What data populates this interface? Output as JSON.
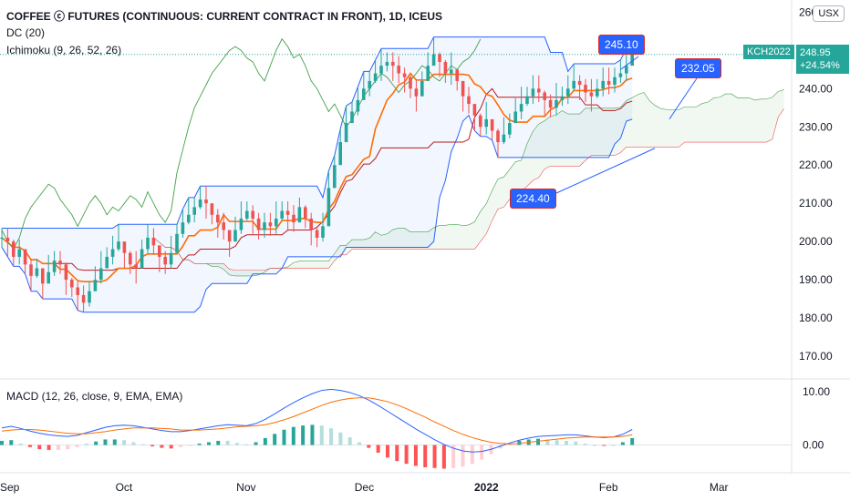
{
  "legend": {
    "title": "COFFEE ⓒ FUTURES (CONTINUOUS: CURRENT CONTRACT IN FRONT), 1D, ICEUS",
    "dc": "DC (20)",
    "ichimoku": "Ichimoku (9, 26, 52, 26)",
    "macd": "MACD (12, 26, close, 9, EMA, EMA)"
  },
  "unit_button": "USX",
  "last_price": {
    "symbol": "KCH2022",
    "price": "248.95",
    "change": "+24.54%"
  },
  "callouts": [
    {
      "label": "245.10",
      "value": 245.1
    },
    {
      "label": "232.05",
      "value": 232.05
    },
    {
      "label": "224.40",
      "value": 224.4
    }
  ],
  "colors": {
    "up": "#26a69a",
    "down": "#ef5350",
    "donchian": "#2962ff",
    "conversion": "#ff6d00",
    "lagging": "#43a047",
    "spanA": "#43a047",
    "spanB": "#ef5350",
    "macd": "#2962ff",
    "signal": "#ff6d00"
  },
  "chart_data": [
    {
      "type": "candlestick",
      "title": "COFFEE ⓒ FUTURES (CONTINUOUS: CURRENT CONTRACT IN FRONT), 1D, ICEUS",
      "ylim": [
        165,
        262
      ],
      "y_ticks": [
        "170.00",
        "180.00",
        "190.00",
        "200.00",
        "210.00",
        "220.00",
        "230.00",
        "240.00",
        "250.00",
        "260.00"
      ],
      "x_ticks": [
        {
          "label": "Sep",
          "bold": false,
          "day": 2
        },
        {
          "label": "Oct",
          "bold": false,
          "day": 31
        },
        {
          "label": "Nov",
          "bold": false,
          "day": 62
        },
        {
          "label": "Dec",
          "bold": false,
          "day": 92
        },
        {
          "label": "2022",
          "bold": true,
          "day": 123
        },
        {
          "label": "Feb",
          "bold": false,
          "day": 154
        },
        {
          "label": "Mar",
          "bold": false,
          "day": 182
        }
      ],
      "close": [
        201,
        200,
        196,
        198,
        194,
        191,
        193,
        189,
        192,
        195,
        194,
        190,
        188,
        186,
        184,
        187,
        190,
        193,
        196,
        198,
        200,
        197,
        194,
        193,
        198,
        201,
        199,
        196,
        194,
        197,
        202,
        205,
        207,
        209,
        211,
        210,
        207,
        205,
        203,
        200,
        203,
        206,
        208,
        206,
        203,
        205,
        204,
        206,
        208,
        207,
        205,
        209,
        206,
        203,
        201,
        204,
        214,
        220,
        226,
        231,
        234,
        237,
        240,
        242,
        244,
        246,
        247,
        246,
        244,
        243,
        240,
        238,
        242,
        246,
        249,
        247,
        244,
        245,
        242,
        238,
        236,
        233,
        230,
        232,
        229,
        226,
        228,
        231,
        234,
        236,
        238,
        240,
        239,
        237,
        235,
        237,
        238,
        240,
        242,
        241,
        239,
        238,
        240,
        242,
        241,
        243,
        244,
        246,
        248.95
      ],
      "sample_dates": "x index in trading days from late Aug 2021 to Feb 2022"
    },
    {
      "type": "line",
      "title": "MACD (12, 26, close, 9, EMA, EMA)",
      "ylim": [
        -4.5,
        12
      ],
      "y_ticks": [
        "0.00",
        "10.00"
      ],
      "series": [
        {
          "name": "MACD",
          "values": [
            3.2,
            3.5,
            3.1,
            2.6,
            2.2,
            1.9,
            1.7,
            1.6,
            1.8,
            2.3,
            2.8,
            3.3,
            3.6,
            3.7,
            3.6,
            3.3,
            3.0,
            2.7,
            2.5,
            2.5,
            2.7,
            3.0,
            3.3,
            3.6,
            3.8,
            3.7,
            3.6,
            4.0,
            4.8,
            5.8,
            6.9,
            7.9,
            8.8,
            9.6,
            10.2,
            10.4,
            10.2,
            9.8,
            9.2,
            8.4,
            7.4,
            6.3,
            5.2,
            4.1,
            3.0,
            2.0,
            1.0,
            0.1,
            -0.6,
            -1.1,
            -1.3,
            -1.2,
            -0.8,
            -0.2,
            0.4,
            0.9,
            1.3,
            1.6,
            1.7,
            1.8,
            1.9,
            1.9,
            1.7,
            1.5,
            1.4,
            1.5,
            2.0,
            2.9
          ]
        },
        {
          "name": "Signal",
          "values": [
            2.6,
            2.8,
            2.9,
            2.9,
            2.8,
            2.6,
            2.4,
            2.2,
            2.1,
            2.1,
            2.3,
            2.5,
            2.8,
            3.0,
            3.2,
            3.2,
            3.2,
            3.1,
            3.0,
            2.8,
            2.8,
            2.8,
            2.9,
            3.0,
            3.2,
            3.4,
            3.5,
            3.6,
            3.8,
            4.2,
            4.7,
            5.3,
            6.0,
            6.7,
            7.4,
            8.0,
            8.4,
            8.7,
            8.8,
            8.8,
            8.5,
            8.1,
            7.5,
            6.8,
            6.0,
            5.2,
            4.3,
            3.5,
            2.7,
            2.0,
            1.4,
            0.9,
            0.5,
            0.3,
            0.2,
            0.3,
            0.5,
            0.7,
            0.9,
            1.1,
            1.3,
            1.4,
            1.5,
            1.5,
            1.5,
            1.5,
            1.6,
            1.9
          ]
        }
      ]
    }
  ]
}
